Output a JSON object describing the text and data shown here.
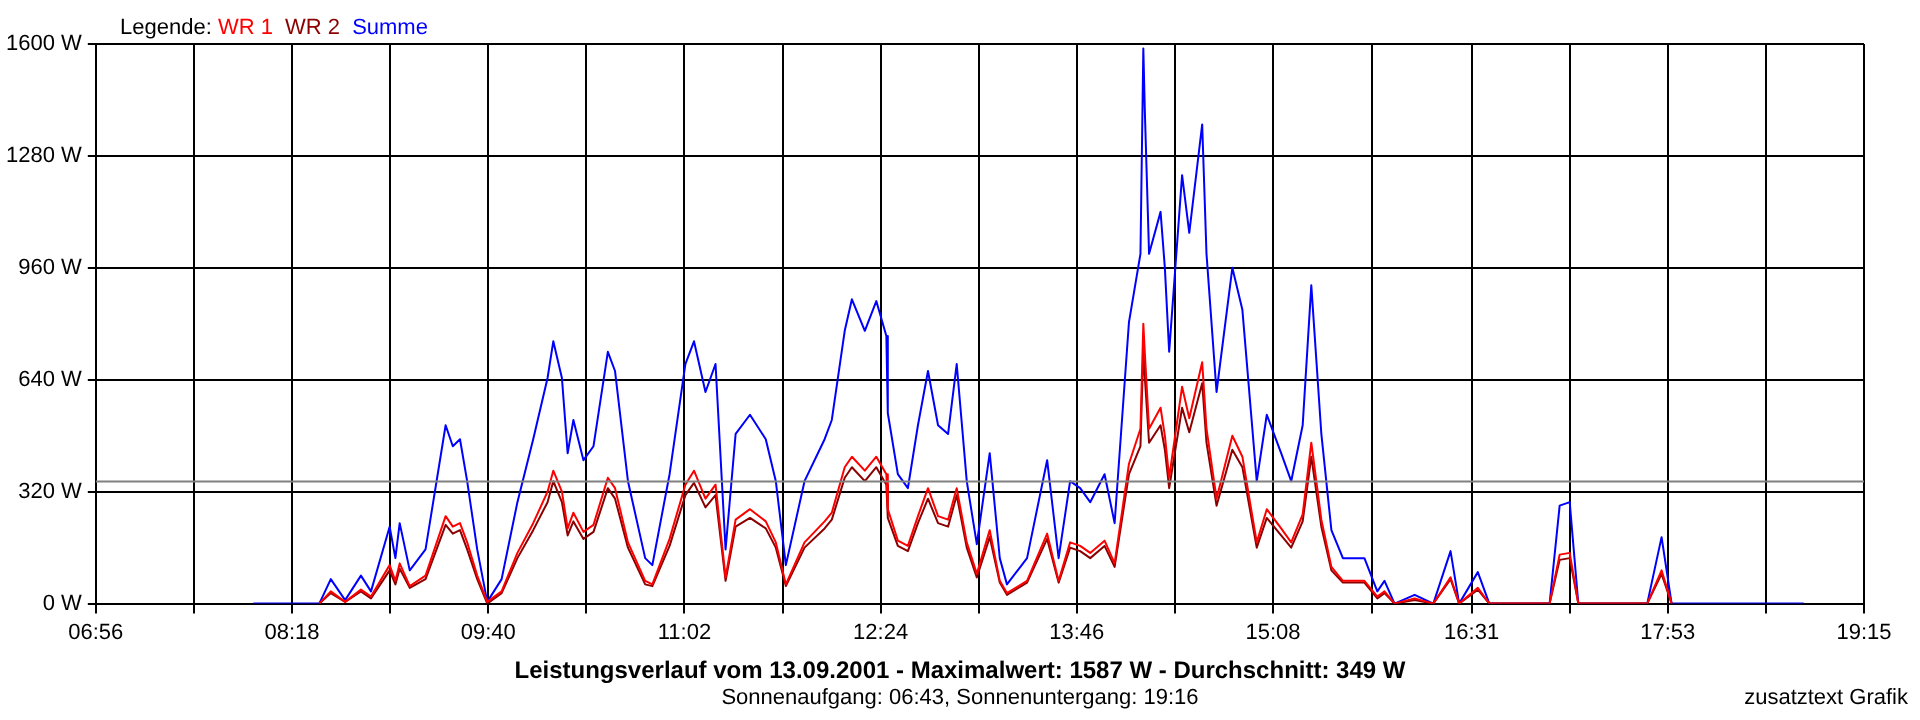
{
  "chart_data": {
    "type": "line",
    "title": "Leistungsverlauf vom 13.09.2001 - Maximalwert: 1587 W - Durchschnitt: 349 W",
    "subtitle": "Sonnenaufgang: 06:43, Sonnenuntergang: 19:16",
    "legend_title": "Legende:",
    "annotations": [
      "zusatztext Grafik"
    ],
    "x": [
      8.03,
      8.49,
      8.57,
      8.67,
      8.78,
      8.85,
      8.98,
      9.02,
      9.05,
      9.12,
      9.23,
      9.37,
      9.42,
      9.47,
      9.52,
      9.59,
      9.66,
      9.76,
      9.87,
      9.98,
      10.08,
      10.12,
      10.18,
      10.22,
      10.26,
      10.33,
      10.4,
      10.5,
      10.55,
      10.64,
      10.76,
      10.81,
      10.93,
      11.04,
      11.1,
      11.18,
      11.25,
      11.32,
      11.39,
      11.49,
      11.6,
      11.67,
      11.74,
      11.87,
      12.01,
      12.06,
      12.15,
      12.2,
      12.29,
      12.37,
      12.44,
      12.45,
      12.52,
      12.59,
      12.66,
      12.73,
      12.8,
      12.87,
      12.93,
      13.0,
      13.07,
      13.16,
      13.23,
      13.28,
      13.42,
      13.56,
      13.64,
      13.72,
      13.79,
      13.86,
      13.96,
      14.03,
      14.13,
      14.21,
      14.23,
      14.24,
      14.27,
      14.35,
      14.38,
      14.41,
      14.5,
      14.55,
      14.64,
      14.67,
      14.74,
      14.85,
      14.92,
      15.02,
      15.09,
      15.19,
      15.26,
      15.34,
      15.4,
      15.47,
      15.54,
      15.62,
      15.77,
      15.86,
      15.91,
      15.98,
      16.12,
      16.25,
      16.37,
      16.43,
      16.56,
      16.64,
      17.06,
      17.13,
      17.2,
      17.26,
      17.74,
      17.84,
      17.91,
      18.83
    ],
    "series": [
      {
        "name": "WR 1",
        "color": "#ff0000",
        "values": [
          null,
          0,
          35,
          5,
          40,
          20,
          110,
          65,
          115,
          50,
          80,
          250,
          220,
          230,
          175,
          80,
          5,
          35,
          145,
          230,
          320,
          380,
          320,
          215,
          260,
          205,
          225,
          360,
          330,
          175,
          65,
          55,
          185,
          340,
          380,
          300,
          340,
          75,
          240,
          270,
          235,
          175,
          55,
          175,
          235,
          260,
          390,
          420,
          380,
          420,
          370,
          270,
          180,
          165,
          250,
          330,
          250,
          240,
          330,
          175,
          85,
          210,
          65,
          30,
          65,
          200,
          65,
          175,
          165,
          145,
          180,
          115,
          400,
          500,
          800,
          720,
          500,
          560,
          480,
          360,
          620,
          530,
          690,
          500,
          300,
          480,
          420,
          175,
          270,
          215,
          175,
          255,
          460,
          240,
          105,
          65,
          65,
          20,
          35,
          0,
          15,
          0,
          75,
          0,
          45,
          0,
          0,
          140,
          145,
          0,
          0,
          95,
          0,
          null
        ]
      },
      {
        "name": "WR 2",
        "color": "#8b0000",
        "values": [
          null,
          0,
          30,
          5,
          35,
          15,
          95,
          55,
          100,
          45,
          70,
          225,
          200,
          210,
          155,
          70,
          0,
          30,
          130,
          210,
          290,
          350,
          290,
          195,
          235,
          185,
          205,
          330,
          300,
          160,
          55,
          50,
          165,
          310,
          345,
          275,
          310,
          65,
          220,
          245,
          215,
          160,
          50,
          160,
          215,
          240,
          360,
          390,
          350,
          390,
          340,
          245,
          165,
          150,
          230,
          300,
          230,
          220,
          310,
          160,
          75,
          190,
          60,
          25,
          60,
          185,
          60,
          160,
          150,
          130,
          165,
          105,
          370,
          450,
          730,
          650,
          460,
          510,
          440,
          330,
          560,
          490,
          630,
          460,
          280,
          440,
          390,
          160,
          245,
          195,
          160,
          235,
          420,
          220,
          95,
          60,
          60,
          15,
          30,
          0,
          10,
          0,
          70,
          0,
          40,
          0,
          0,
          125,
          130,
          0,
          0,
          85,
          0,
          null
        ]
      },
      {
        "name": "Summe",
        "color": "#0000ff",
        "values": [
          0,
          0,
          70,
          10,
          80,
          35,
          220,
          130,
          230,
          95,
          155,
          510,
          450,
          470,
          350,
          155,
          5,
          70,
          290,
          470,
          645,
          750,
          645,
          430,
          525,
          410,
          450,
          720,
          665,
          350,
          130,
          110,
          370,
          685,
          750,
          605,
          685,
          155,
          485,
          540,
          470,
          350,
          110,
          350,
          470,
          525,
          780,
          870,
          780,
          865,
          765,
          545,
          370,
          330,
          510,
          665,
          510,
          485,
          685,
          350,
          170,
          430,
          130,
          55,
          130,
          410,
          130,
          350,
          330,
          290,
          370,
          230,
          805,
          1000,
          1587,
          1415,
          1000,
          1120,
          960,
          720,
          1225,
          1060,
          1370,
          1000,
          605,
          960,
          840,
          350,
          540,
          430,
          350,
          510,
          910,
          485,
          210,
          130,
          130,
          35,
          65,
          0,
          25,
          0,
          150,
          0,
          90,
          0,
          0,
          280,
          290,
          0,
          0,
          190,
          0,
          0
        ]
      }
    ],
    "xlim": [
      6.9333,
      19.25
    ],
    "xticks": [
      {
        "value": 6.9333,
        "label": "06:56"
      },
      {
        "value": 7.6167,
        "label": null
      },
      {
        "value": 8.3,
        "label": "08:18"
      },
      {
        "value": 8.9833,
        "label": null
      },
      {
        "value": 9.6667,
        "label": "09:40"
      },
      {
        "value": 10.35,
        "label": null
      },
      {
        "value": 11.0333,
        "label": "11:02"
      },
      {
        "value": 11.7167,
        "label": null
      },
      {
        "value": 12.4,
        "label": "12:24"
      },
      {
        "value": 13.0833,
        "label": null
      },
      {
        "value": 13.7667,
        "label": "13:46"
      },
      {
        "value": 14.45,
        "label": null
      },
      {
        "value": 15.1333,
        "label": "15:08"
      },
      {
        "value": 15.825,
        "label": null
      },
      {
        "value": 16.5167,
        "label": "16:31"
      },
      {
        "value": 17.2,
        "label": null
      },
      {
        "value": 17.8833,
        "label": "17:53"
      },
      {
        "value": 18.5667,
        "label": null
      },
      {
        "value": 19.25,
        "label": "19:15"
      }
    ],
    "ylim": [
      0,
      1600
    ],
    "yticks": [
      {
        "value": 0,
        "label": "0 W"
      },
      {
        "value": 320,
        "label": "320 W"
      },
      {
        "value": 640,
        "label": "640 W"
      },
      {
        "value": 960,
        "label": "960 W"
      },
      {
        "value": 1280,
        "label": "1280 W"
      },
      {
        "value": 1600,
        "label": "1600 W"
      }
    ],
    "ref_lines": [
      {
        "axis": "y",
        "value": 349,
        "color": "#808080"
      }
    ],
    "grid": true,
    "legend": "top left"
  }
}
